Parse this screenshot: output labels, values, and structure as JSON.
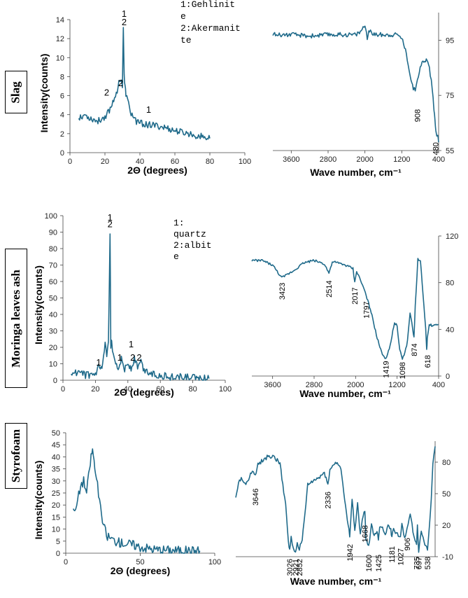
{
  "colors": {
    "series": "#1f6a8a",
    "axis": "#444444"
  },
  "row_labels": [
    "Slag",
    "Moringa leaves ash",
    "Styrofoam"
  ],
  "chart_data": [
    {
      "id": "slag_xrd",
      "type": "line",
      "xlabel": "2Θ (degrees)",
      "ylabel": "Intensity(counts)",
      "xlim": [
        0,
        100
      ],
      "ylim": [
        0,
        14
      ],
      "xticks": [
        0,
        20,
        40,
        60,
        80,
        100
      ],
      "yticks": [
        0,
        2,
        4,
        6,
        8,
        10,
        12,
        14
      ],
      "x": [
        5,
        8,
        12,
        16,
        20,
        23,
        25,
        27,
        28,
        29,
        30,
        30.5,
        31,
        31.5,
        32,
        33,
        35,
        38,
        42,
        46,
        50,
        55,
        60,
        65,
        70,
        75,
        80
      ],
      "y": [
        3.7,
        4.0,
        3.6,
        3.3,
        3.8,
        4.6,
        5.6,
        6.6,
        7.3,
        7.8,
        7.1,
        13.2,
        8.0,
        6.8,
        6.2,
        5.4,
        4.1,
        3.3,
        3.0,
        2.9,
        2.8,
        2.6,
        2.3,
        2.1,
        1.9,
        1.7,
        1.5
      ],
      "noise": 0.35,
      "annotations": [
        {
          "text": "1",
          "x": 31,
          "y": 14.3
        },
        {
          "text": "2",
          "x": 31,
          "y": 13.4
        },
        {
          "text": "2",
          "x": 29,
          "y": 7.0
        },
        {
          "text": "2",
          "x": 21,
          "y": 6.0
        },
        {
          "text": "1",
          "x": 45,
          "y": 4.2
        }
      ],
      "legend": [
        "1:Gehlinit",
        "e",
        "2:Akermanit",
        "te"
      ]
    },
    {
      "id": "slag_ftir",
      "type": "line",
      "xlabel": "Wave number, cm⁻¹",
      "ylabel": "",
      "xlim": [
        4000,
        400
      ],
      "ylim": [
        55,
        105
      ],
      "xticks": [
        3600,
        2800,
        2000,
        1200,
        400
      ],
      "yticks": [
        55,
        75,
        95
      ],
      "yaxis": "right",
      "x": [
        4000,
        3600,
        3200,
        2800,
        2400,
        2200,
        2100,
        2000,
        1950,
        1900,
        1800,
        1600,
        1400,
        1300,
        1200,
        1100,
        1000,
        950,
        908,
        860,
        800,
        700,
        650,
        600,
        560,
        520,
        500,
        480,
        460,
        420,
        400
      ],
      "y": [
        97,
        97,
        96.5,
        97,
        97,
        97,
        98,
        100.5,
        96,
        98.5,
        97,
        97,
        97,
        97,
        96,
        90,
        81,
        77.5,
        77,
        80,
        86,
        88,
        87.5,
        85,
        80,
        74,
        70,
        66,
        62,
        60,
        58
      ],
      "noise": 0.8,
      "annotations": [
        {
          "text": "908",
          "x": 860,
          "y": 70,
          "rotate": true
        },
        {
          "text": "480",
          "x": 470,
          "y": 58,
          "rotate": true
        }
      ]
    },
    {
      "id": "moringa_xrd",
      "type": "line",
      "xlabel": "2Θ (degrees)",
      "ylabel": "Intensity(counts)",
      "xlim": [
        0,
        100
      ],
      "ylim": [
        0,
        100
      ],
      "xticks": [
        0,
        20,
        40,
        60,
        80,
        100
      ],
      "yticks": [
        0,
        10,
        20,
        30,
        40,
        50,
        60,
        70,
        80,
        90,
        100
      ],
      "x": [
        5,
        10,
        15,
        20,
        22,
        24,
        26,
        27,
        28,
        29,
        29.5,
        30,
        31,
        32,
        34,
        36,
        38,
        40,
        42,
        44,
        46,
        48,
        50,
        55,
        60,
        65,
        70,
        75,
        80,
        85,
        90
      ],
      "y": [
        5,
        4,
        3,
        3,
        8,
        6,
        21,
        14,
        22,
        88,
        20,
        25,
        14,
        12,
        8,
        13,
        7,
        10,
        7,
        13,
        8,
        11,
        6,
        4,
        3,
        2,
        2,
        2,
        1.5,
        1.5,
        1
      ],
      "noise": 2.2,
      "annotations": [
        {
          "text": "1",
          "x": 29,
          "y": 97
        },
        {
          "text": "2",
          "x": 29,
          "y": 93
        },
        {
          "text": "1",
          "x": 22,
          "y": 9
        },
        {
          "text": "1",
          "x": 35,
          "y": 12
        },
        {
          "text": "1",
          "x": 42,
          "y": 20
        },
        {
          "text": "2",
          "x": 43,
          "y": 12
        },
        {
          "text": "2",
          "x": 47,
          "y": 12
        }
      ],
      "legend": [
        "1:",
        "quartz",
        "2:albit",
        "e"
      ]
    },
    {
      "id": "moringa_ftir",
      "type": "line",
      "xlabel": "Wave number, cm⁻¹",
      "ylabel": "",
      "xlim": [
        4000,
        400
      ],
      "ylim": [
        0,
        120
      ],
      "xticks": [
        3600,
        2800,
        2000,
        1200,
        400
      ],
      "yticks": [
        0,
        40,
        80,
        120
      ],
      "yaxis": "right",
      "x": [
        4000,
        3800,
        3600,
        3423,
        3200,
        3000,
        2800,
        2600,
        2514,
        2450,
        2200,
        2050,
        2017,
        1980,
        1850,
        1797,
        1700,
        1600,
        1500,
        1419,
        1350,
        1250,
        1200,
        1150,
        1098,
        1050,
        1000,
        950,
        900,
        874,
        850,
        800,
        750,
        700,
        650,
        630,
        618,
        580,
        500,
        400
      ],
      "y": [
        99,
        99,
        95,
        84,
        90,
        97,
        99,
        96,
        88,
        98,
        95,
        92,
        80,
        90,
        76,
        69,
        55,
        35,
        20,
        15,
        23,
        46,
        43,
        22,
        15,
        20,
        30,
        55,
        40,
        33,
        60,
        100,
        98,
        70,
        40,
        22,
        32,
        44,
        43,
        44
      ],
      "noise": 1.0,
      "annotations": [
        {
          "text": "3423",
          "x": 3423,
          "y": 80,
          "rotate": true
        },
        {
          "text": "2514",
          "x": 2514,
          "y": 82,
          "rotate": true
        },
        {
          "text": "2017",
          "x": 2017,
          "y": 76,
          "rotate": true
        },
        {
          "text": "1797",
          "x": 1797,
          "y": 64,
          "rotate": true
        },
        {
          "text": "1419",
          "x": 1419,
          "y": 13,
          "rotate": true
        },
        {
          "text": "1098",
          "x": 1098,
          "y": 12,
          "rotate": true
        },
        {
          "text": "874",
          "x": 874,
          "y": 28,
          "rotate": true
        },
        {
          "text": "618",
          "x": 618,
          "y": 18,
          "rotate": true
        }
      ]
    },
    {
      "id": "styrofoam_xrd",
      "type": "line",
      "xlabel": "2Θ (degrees)",
      "ylabel": "Intensity(counts)",
      "xlim": [
        0,
        100
      ],
      "ylim": [
        0,
        50
      ],
      "xticks": [
        0,
        50,
        100
      ],
      "yticks": [
        0,
        5,
        10,
        15,
        20,
        25,
        30,
        35,
        40,
        45,
        50
      ],
      "x": [
        5,
        6,
        8,
        10,
        12,
        14,
        16,
        17,
        18,
        19,
        20,
        22,
        24,
        26,
        28,
        30,
        35,
        40,
        45,
        50,
        55,
        60,
        70,
        80,
        90
      ],
      "y": [
        20,
        16,
        22,
        28,
        30,
        25,
        35,
        40,
        43,
        38,
        33,
        25,
        15,
        10,
        7,
        6,
        4.5,
        4,
        3.5,
        2.5,
        2,
        1.5,
        1.2,
        1,
        1
      ],
      "noise": 2.0,
      "annotations": []
    },
    {
      "id": "styrofoam_ftir",
      "type": "line",
      "xlabel": "Wave number, cm⁻¹",
      "ylabel": "",
      "xlim": [
        4000,
        400
      ],
      "ylim": [
        -10,
        100
      ],
      "xticks": [],
      "yticks": [
        -10,
        20,
        50,
        80
      ],
      "yaxis": "right",
      "x": [
        4000,
        3950,
        3900,
        3800,
        3700,
        3646,
        3600,
        3500,
        3400,
        3300,
        3200,
        3100,
        3050,
        3026,
        3000,
        2960,
        2921,
        2890,
        2852,
        2800,
        2700,
        2600,
        2500,
        2400,
        2336,
        2300,
        2200,
        2100,
        2050,
        2000,
        1942,
        1900,
        1850,
        1800,
        1750,
        1700,
        1668,
        1650,
        1600,
        1550,
        1500,
        1450,
        1425,
        1400,
        1350,
        1300,
        1250,
        1200,
        1181,
        1150,
        1100,
        1027,
        1000,
        950,
        906,
        850,
        800,
        760,
        735,
        720,
        697,
        650,
        600,
        538,
        500,
        470,
        440,
        400
      ],
      "y": [
        48,
        60,
        64,
        60,
        72,
        66,
        78,
        82,
        86,
        85,
        78,
        40,
        5,
        -4,
        8,
        -3,
        -5,
        2,
        -2,
        5,
        58,
        62,
        65,
        70,
        60,
        72,
        80,
        75,
        50,
        30,
        10,
        45,
        15,
        40,
        10,
        30,
        35,
        5,
        0,
        20,
        10,
        15,
        5,
        20,
        18,
        10,
        22,
        15,
        8,
        18,
        12,
        10,
        20,
        8,
        18,
        30,
        15,
        5,
        0,
        20,
        -5,
        15,
        5,
        -3,
        20,
        45,
        80,
        95
      ],
      "noise": 2.0,
      "annotations": [
        {
          "text": "3646",
          "x": 3646,
          "y": 55,
          "rotate": true
        },
        {
          "text": "2336",
          "x": 2336,
          "y": 52,
          "rotate": true
        },
        {
          "text": "3026",
          "x": 3026,
          "y": -12,
          "rotate": true
        },
        {
          "text": "2921",
          "x": 2921,
          "y": -12,
          "rotate": true
        },
        {
          "text": "2852",
          "x": 2852,
          "y": -12,
          "rotate": true
        },
        {
          "text": "1942",
          "x": 1942,
          "y": 2,
          "rotate": true
        },
        {
          "text": "1668",
          "x": 1668,
          "y": 20,
          "rotate": true
        },
        {
          "text": "1600",
          "x": 1600,
          "y": -8,
          "rotate": true
        },
        {
          "text": "1425",
          "x": 1425,
          "y": -8,
          "rotate": true
        },
        {
          "text": "1181",
          "x": 1181,
          "y": 0,
          "rotate": true
        },
        {
          "text": "1027",
          "x": 1027,
          "y": -2,
          "rotate": true
        },
        {
          "text": "906",
          "x": 906,
          "y": 8,
          "rotate": true
        },
        {
          "text": "735",
          "x": 735,
          "y": -10,
          "rotate": true
        },
        {
          "text": "697",
          "x": 697,
          "y": -10,
          "rotate": true
        },
        {
          "text": "538",
          "x": 538,
          "y": -10,
          "rotate": true
        }
      ]
    }
  ]
}
